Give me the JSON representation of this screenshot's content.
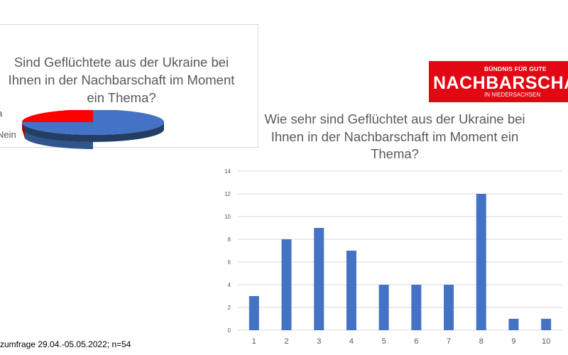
{
  "footnote": "zumfrage 29.04.-05.05.2022; n=54",
  "logo": {
    "top": "BÜNDNIS FÜR GUTE",
    "main": "NACHBARSCHA",
    "bottom": "IN NIEDERSACHSEN"
  },
  "chart_data": [
    {
      "type": "pie",
      "title": "Sind Geflüchtete aus der Ukraine bei Ihnen in der Nachbarschaft im Moment ein Thema?",
      "labels": [
        "a",
        "Nein"
      ],
      "values": [
        17,
        83
      ],
      "colors": [
        "#ff0000",
        "#4472c4"
      ],
      "style": "3d",
      "legend": "left"
    },
    {
      "type": "bar",
      "title": "Wie sehr sind Geflüchtet aus der Ukraine bei Ihnen in der Nachbarschaft im Moment ein Thema?",
      "categories": [
        "1",
        "2",
        "3",
        "4",
        "5",
        "6",
        "7",
        "8",
        "9",
        "10"
      ],
      "values": [
        3,
        8,
        9,
        7,
        4,
        4,
        4,
        12,
        1,
        1
      ],
      "yticks": [
        "0",
        "2",
        "4",
        "6",
        "8",
        "10",
        "12",
        "14"
      ],
      "ylim": [
        0,
        14
      ],
      "xlabel": "",
      "ylabel": "",
      "color": "#4472c4",
      "grid": true
    }
  ]
}
